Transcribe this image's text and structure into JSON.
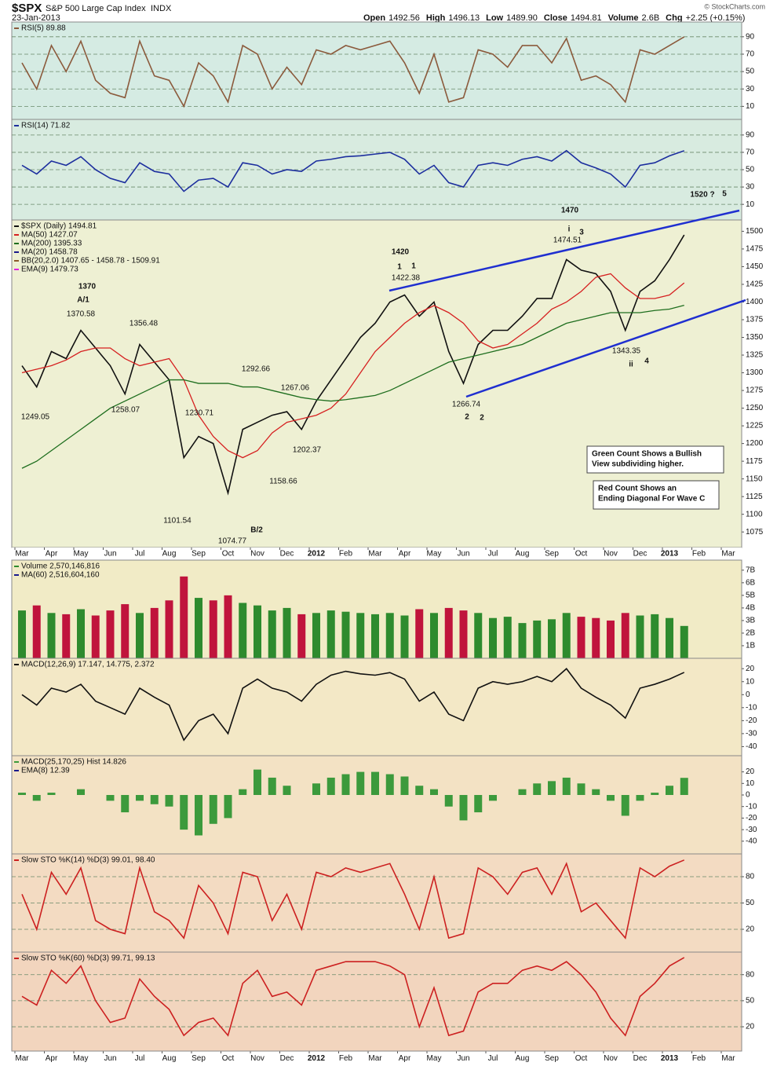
{
  "header": {
    "symbol": "$SPX",
    "name": "S&P 500 Large Cap Index",
    "exchange": "INDX",
    "date": "23-Jan-2013",
    "quote": [
      [
        "Open",
        "1492.56"
      ],
      [
        "High",
        "1496.13"
      ],
      [
        "Low",
        "1489.90"
      ],
      [
        "Close",
        "1494.81"
      ],
      [
        "Volume",
        "2.6B"
      ],
      [
        "Chg",
        "+2.25 (+0.15%)"
      ]
    ],
    "credit": "© StockCharts.com"
  },
  "chart_data": [
    {
      "type": "line",
      "ylim": [
        -5,
        107
      ],
      "yticks": [
        10,
        30,
        50,
        70,
        90
      ],
      "grid": true,
      "series": [
        {
          "name": "RSI(5) 89.88",
          "color": "#8b5a3c",
          "values": [
            60,
            30,
            80,
            50,
            85,
            40,
            25,
            20,
            85,
            45,
            40,
            10,
            60,
            45,
            15,
            80,
            70,
            30,
            55,
            35,
            75,
            70,
            80,
            75,
            80,
            85,
            60,
            25,
            70,
            15,
            20,
            75,
            70,
            55,
            80,
            80,
            60,
            88,
            40,
            45,
            35,
            15,
            75,
            70,
            80,
            89.88,
            null,
            null,
            null
          ]
        }
      ]
    },
    {
      "type": "line",
      "ylim": [
        -8,
        108
      ],
      "yticks": [
        10,
        30,
        50,
        70,
        90
      ],
      "grid": true,
      "series": [
        {
          "name": "RSI(14) 71.82",
          "color": "#1c2e9e",
          "values": [
            55,
            45,
            60,
            55,
            65,
            50,
            40,
            35,
            58,
            48,
            45,
            25,
            38,
            40,
            30,
            58,
            55,
            45,
            50,
            48,
            60,
            62,
            65,
            66,
            68,
            70,
            62,
            45,
            55,
            35,
            30,
            55,
            58,
            55,
            62,
            65,
            60,
            72,
            58,
            52,
            45,
            30,
            55,
            58,
            66,
            71.82,
            null,
            null,
            null
          ]
        }
      ]
    },
    {
      "type": "line",
      "ylim": [
        1053,
        1516
      ],
      "yticks": [
        1075,
        1100,
        1125,
        1150,
        1175,
        1200,
        1225,
        1250,
        1275,
        1300,
        1325,
        1350,
        1375,
        1400,
        1425,
        1450,
        1475,
        1500
      ],
      "grid": false,
      "categories": [
        "Mar",
        null,
        "Apr",
        null,
        "May",
        null,
        "Jun",
        null,
        "Jul",
        null,
        "Aug",
        null,
        "Sep",
        null,
        "Oct",
        null,
        "Nov",
        null,
        "Dec",
        null,
        "2012",
        null,
        "Feb",
        null,
        "Mar",
        null,
        "Apr",
        null,
        "May",
        null,
        "Jun",
        null,
        "Jul",
        null,
        "Aug",
        null,
        "Sep",
        null,
        "Oct",
        null,
        "Nov",
        null,
        "Dec",
        null,
        "2013",
        null,
        "Feb",
        null,
        "Mar"
      ],
      "series": [
        {
          "name": "$SPX (Daily) 1494.81",
          "color": "#111111",
          "values": [
            1310,
            1280,
            1330,
            1320,
            1360,
            1335,
            1310,
            1270,
            1340,
            1315,
            1290,
            1180,
            1210,
            1200,
            1130,
            1220,
            1230,
            1240,
            1245,
            1220,
            1260,
            1290,
            1320,
            1350,
            1370,
            1400,
            1410,
            1380,
            1400,
            1330,
            1285,
            1340,
            1360,
            1360,
            1380,
            1405,
            1405,
            1460,
            1445,
            1440,
            1415,
            1360,
            1415,
            1430,
            1460,
            1494.81,
            null,
            null,
            null
          ]
        },
        {
          "name": "MA(50) 1427.07",
          "color": "#d62020",
          "values": [
            1300,
            1305,
            1310,
            1318,
            1330,
            1335,
            1335,
            1320,
            1310,
            1315,
            1320,
            1290,
            1240,
            1210,
            1190,
            1180,
            1190,
            1215,
            1230,
            1235,
            1240,
            1250,
            1270,
            1300,
            1330,
            1350,
            1370,
            1385,
            1395,
            1385,
            1370,
            1345,
            1335,
            1340,
            1355,
            1370,
            1390,
            1400,
            1415,
            1435,
            1440,
            1420,
            1405,
            1405,
            1410,
            1427.07,
            null,
            null,
            null
          ]
        },
        {
          "name": "MA(200) 1395.33",
          "color": "#1e6e1e",
          "values": [
            1165,
            1175,
            1190,
            1205,
            1220,
            1235,
            1250,
            1260,
            1270,
            1280,
            1290,
            1290,
            1285,
            1285,
            1285,
            1280,
            1280,
            1275,
            1270,
            1265,
            1262,
            1260,
            1262,
            1265,
            1268,
            1275,
            1285,
            1295,
            1305,
            1315,
            1320,
            1325,
            1330,
            1335,
            1340,
            1350,
            1360,
            1370,
            1375,
            1380,
            1385,
            1385,
            1385,
            1388,
            1390,
            1395.33,
            null,
            null,
            null
          ]
        }
      ],
      "legend_extra": [
        {
          "text": "MA(20) 1458.78",
          "color": "#1a1a8c"
        },
        {
          "text": "BB(20,2.0) 1407.65 - 1458.78 - 1509.91",
          "color": "#8b5a2b"
        },
        {
          "text": "EMA(9) 1479.73",
          "color": "#e020e0"
        }
      ],
      "annotations": [
        "1370",
        "A/1",
        "1370.58",
        "1356.48",
        "1249.05",
        "1258.07",
        "1230.71",
        "1101.54",
        "1074.77",
        "B/2",
        "1292.66",
        "1267.06",
        "1202.37",
        "1158.66",
        "1420",
        "1",
        "1",
        "1422.38",
        "1266.74",
        "2",
        "2",
        "1470",
        "i",
        "3",
        "1474.51",
        "1343.35",
        "ii",
        "4",
        "1520 ?",
        "5"
      ],
      "notes": [
        [
          "Green Count Shows a Bullish",
          "View subdividing higher."
        ],
        [
          "Red Count Shows an",
          "Ending Diagonal For Wave C"
        ]
      ]
    },
    {
      "type": "bar",
      "ylim": [
        0,
        7.8
      ],
      "yticks": [
        {
          "value": 1,
          "label": "1B"
        },
        {
          "value": 2,
          "label": "2B"
        },
        {
          "value": 3,
          "label": "3B"
        },
        {
          "value": 4,
          "label": "4B"
        },
        {
          "value": 5,
          "label": "5B"
        },
        {
          "value": 6,
          "label": "6B"
        },
        {
          "value": 7,
          "label": "7B"
        }
      ],
      "grid": false,
      "up_color": "#2e8b2e",
      "down_color": "#c0143c",
      "series": [
        {
          "name": "Volume 2,570,146,816",
          "color": "#2e8b2e",
          "values": [
            3.8,
            4.2,
            3.6,
            3.5,
            3.9,
            3.4,
            3.8,
            4.3,
            3.6,
            4.0,
            4.6,
            6.5,
            4.8,
            4.6,
            5.0,
            4.4,
            4.2,
            3.8,
            4.0,
            3.5,
            3.6,
            3.8,
            3.7,
            3.6,
            3.5,
            3.6,
            3.4,
            3.9,
            3.6,
            4.0,
            3.8,
            3.6,
            3.2,
            3.3,
            2.8,
            3.0,
            3.1,
            3.6,
            3.3,
            3.2,
            3.0,
            3.6,
            3.4,
            3.5,
            3.2,
            2.57,
            null,
            null,
            null
          ]
        }
      ],
      "legend_extra": [
        {
          "text": "MA(60) 2,516,604,160",
          "color": "#1a1a8c"
        }
      ]
    },
    {
      "type": "line",
      "ylim": [
        -47,
        28
      ],
      "yticks": [
        -40,
        -30,
        -20,
        -10,
        0,
        10,
        20
      ],
      "grid": false,
      "series": [
        {
          "name": "MACD(12,26,9) 17.147, 14.775, 2.372",
          "color": "#111111",
          "values": [
            0,
            -8,
            5,
            2,
            8,
            -5,
            -10,
            -15,
            5,
            -2,
            -8,
            -35,
            -20,
            -15,
            -30,
            5,
            12,
            5,
            2,
            -5,
            8,
            15,
            18,
            16,
            15,
            17,
            12,
            -5,
            2,
            -15,
            -20,
            5,
            10,
            8,
            10,
            14,
            10,
            20,
            5,
            -2,
            -8,
            -18,
            5,
            8,
            12,
            17.147,
            null,
            null,
            null
          ]
        }
      ]
    },
    {
      "type": "bar",
      "ylim": [
        -51,
        34
      ],
      "yticks": [
        -40,
        -30,
        -20,
        -10,
        0,
        10,
        20
      ],
      "grid": false,
      "series": [
        {
          "name": "MACD(25,170,25) Hist 14.826",
          "color": "#3c9a3c",
          "values": [
            2,
            -5,
            2,
            0,
            5,
            0,
            -5,
            -15,
            -5,
            -8,
            -10,
            -30,
            -35,
            -25,
            -20,
            5,
            22,
            15,
            8,
            0,
            10,
            15,
            18,
            20,
            20,
            18,
            16,
            8,
            5,
            -10,
            -22,
            -15,
            -5,
            0,
            5,
            10,
            12,
            15,
            10,
            5,
            -5,
            -18,
            -5,
            2,
            8,
            14.826,
            null,
            null,
            null
          ]
        }
      ],
      "legend_extra": [
        {
          "text": "EMA(8) 12.39",
          "color": "#1a1a8c"
        }
      ]
    },
    {
      "type": "line",
      "ylim": [
        -6,
        106
      ],
      "yticks": [
        20,
        50,
        80
      ],
      "grid": true,
      "series": [
        {
          "name": "Slow STO %K(14) %D(3) 99.01, 98.40",
          "color": "#cc2020",
          "values": [
            60,
            20,
            85,
            60,
            90,
            30,
            20,
            15,
            90,
            40,
            30,
            10,
            70,
            50,
            15,
            85,
            80,
            30,
            60,
            20,
            85,
            80,
            90,
            85,
            90,
            95,
            60,
            20,
            80,
            10,
            15,
            90,
            80,
            60,
            85,
            90,
            60,
            95,
            40,
            50,
            30,
            10,
            90,
            80,
            92,
            99.01,
            null,
            null,
            null
          ]
        }
      ]
    },
    {
      "type": "line",
      "ylim": [
        -8,
        106
      ],
      "yticks": [
        20,
        50,
        80
      ],
      "grid": true,
      "series": [
        {
          "name": "Slow STO %K(60) %D(3) 99.71, 99.13",
          "color": "#cc2020",
          "values": [
            55,
            45,
            85,
            70,
            90,
            50,
            25,
            30,
            75,
            55,
            40,
            10,
            25,
            30,
            10,
            70,
            85,
            55,
            60,
            45,
            85,
            90,
            95,
            95,
            95,
            90,
            80,
            20,
            65,
            10,
            15,
            60,
            70,
            70,
            85,
            90,
            85,
            95,
            80,
            60,
            30,
            10,
            55,
            70,
            90,
            99.71,
            null,
            null,
            null
          ]
        }
      ]
    }
  ]
}
